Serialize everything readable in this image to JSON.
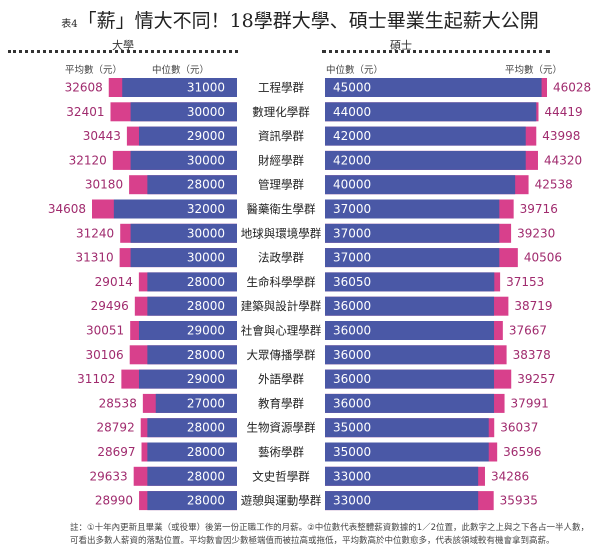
{
  "title": {
    "prefix": "表4",
    "main": "「薪」情大不同！18學群大學、碩士畢業生起薪大公開"
  },
  "chart_data": {
    "type": "bar",
    "title": "「薪」情大不同！18學群大學、碩士畢業生起薪大公開",
    "panels": {
      "left": "大學",
      "right": "碩士"
    },
    "headers": {
      "avg": "平均數（元）",
      "median": "中位數（元）"
    },
    "categories": [
      "工程學群",
      "數理化學群",
      "資訊學群",
      "財經學群",
      "管理學群",
      "醫藥衛生學群",
      "地球與環境學群",
      "法政學群",
      "生命科學學群",
      "建築與設計學群",
      "社會與心理學群",
      "大眾傳播學群",
      "外語學群",
      "教育學群",
      "生物資源學群",
      "藝術學群",
      "文史哲學群",
      "遊憩與運動學群"
    ],
    "series": [
      {
        "name": "大學平均數",
        "values": [
          32608,
          32401,
          30443,
          32120,
          30180,
          34608,
          31240,
          31310,
          29014,
          29496,
          30051,
          30106,
          31102,
          28538,
          28792,
          28697,
          29633,
          28990
        ]
      },
      {
        "name": "大學中位數",
        "values": [
          31000,
          30000,
          29000,
          30000,
          28000,
          32000,
          30000,
          30000,
          28000,
          28000,
          29000,
          28000,
          29000,
          27000,
          28000,
          28000,
          28000,
          28000
        ]
      },
      {
        "name": "碩士中位數",
        "values": [
          45000,
          44000,
          42000,
          42000,
          40000,
          37000,
          37000,
          37000,
          36050,
          36000,
          36000,
          36000,
          36000,
          36000,
          35000,
          35000,
          33000,
          33000
        ]
      },
      {
        "name": "碩士平均數",
        "values": [
          46028,
          44419,
          43998,
          44320,
          42538,
          39716,
          39230,
          40506,
          37153,
          38719,
          37667,
          38378,
          39257,
          37991,
          36037,
          36596,
          34286,
          35935
        ]
      }
    ],
    "colors": {
      "median": "#4a58a6",
      "avg": "#d8408c",
      "avg_text": "#a02b6e"
    }
  },
  "note": "註：①十年內更新且畢業（或役畢）後第一份正職工作的月薪。②中位數代表整體薪資數據的1／2位置，此數字之上與之下各占一半人數，可看出多數人薪資的落點位置。平均數會因少數極端值而被拉高或拖低，平均數高於中位數愈多，代表該領域較有機會拿到高薪。"
}
